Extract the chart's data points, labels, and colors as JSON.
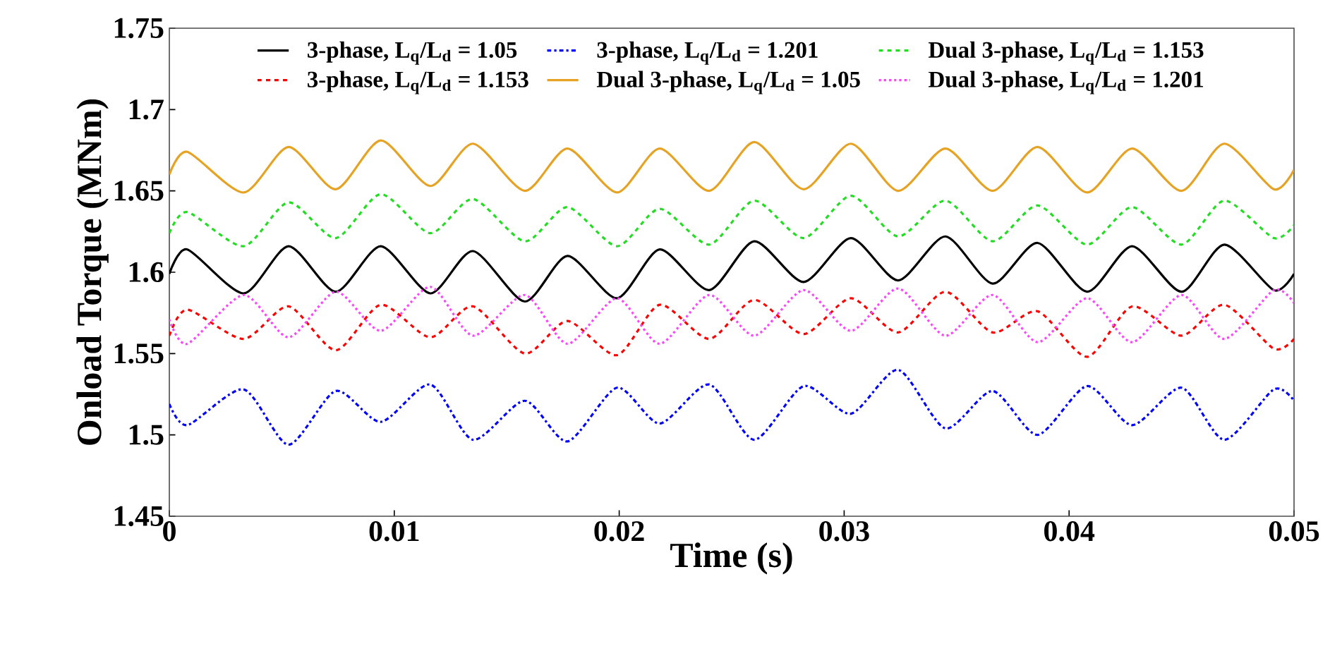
{
  "chart_data": {
    "type": "line",
    "xlabel": "Time (s)",
    "ylabel": "Onload Torque (MNm)",
    "x": [
      0,
      0.0008,
      0.0033,
      0.0053,
      0.0074,
      0.0094,
      0.0116,
      0.0135,
      0.0158,
      0.0177,
      0.0199,
      0.0218,
      0.024,
      0.026,
      0.0282,
      0.0303,
      0.0324,
      0.0345,
      0.0366,
      0.0386,
      0.0408,
      0.0428,
      0.045,
      0.0469,
      0.0491,
      0.05
    ],
    "xlim": [
      0,
      0.05
    ],
    "ylim": [
      1.45,
      1.75
    ],
    "xticks": [
      0,
      0.01,
      0.02,
      0.03,
      0.04,
      0.05
    ],
    "yticks": [
      1.45,
      1.5,
      1.55,
      1.6,
      1.65,
      1.7,
      1.75
    ],
    "grid": false,
    "legend": "top",
    "marker": "none",
    "series": [
      {
        "name": "3-phase, L$_{q}$/L$_{d}$ = 1.05",
        "color": "#000000",
        "line_style": "solid",
        "values": [
          1.599,
          1.614,
          1.587,
          1.616,
          1.588,
          1.616,
          1.587,
          1.613,
          1.582,
          1.61,
          1.584,
          1.614,
          1.589,
          1.619,
          1.594,
          1.621,
          1.595,
          1.622,
          1.593,
          1.618,
          1.588,
          1.616,
          1.588,
          1.617,
          1.589,
          1.599
        ]
      },
      {
        "name": "3-phase, L$_{q}$/L$_{d}$ = 1.201",
        "color": "#0000ff",
        "line_style": "dashdot",
        "values": [
          1.519,
          1.506,
          1.528,
          1.494,
          1.527,
          1.508,
          1.531,
          1.497,
          1.521,
          1.496,
          1.529,
          1.507,
          1.531,
          1.497,
          1.53,
          1.513,
          1.54,
          1.504,
          1.527,
          1.5,
          1.53,
          1.506,
          1.529,
          1.497,
          1.528,
          1.521
        ]
      },
      {
        "name": "Dual 3-phase, L$_{q}$/L$_{d}$ = 1.153",
        "color": "#22dd22",
        "line_style": "dashed",
        "values": [
          1.624,
          1.637,
          1.616,
          1.643,
          1.621,
          1.648,
          1.624,
          1.645,
          1.619,
          1.64,
          1.616,
          1.639,
          1.617,
          1.644,
          1.621,
          1.647,
          1.622,
          1.644,
          1.619,
          1.641,
          1.617,
          1.64,
          1.617,
          1.644,
          1.621,
          1.629
        ]
      },
      {
        "name": "3-phase, L$_{q}$/L$_{d}$ = 1.153",
        "color": "#ff0000",
        "line_style": "dashed",
        "values": [
          1.561,
          1.577,
          1.559,
          1.579,
          1.552,
          1.58,
          1.56,
          1.579,
          1.55,
          1.57,
          1.549,
          1.58,
          1.559,
          1.583,
          1.562,
          1.584,
          1.563,
          1.588,
          1.563,
          1.576,
          1.548,
          1.579,
          1.561,
          1.58,
          1.553,
          1.559
        ]
      },
      {
        "name": "Dual 3-phase, L$_{q}$/L$_{d}$ = 1.05",
        "color": "#e6a323",
        "line_style": "solid",
        "values": [
          1.66,
          1.674,
          1.649,
          1.677,
          1.651,
          1.681,
          1.653,
          1.679,
          1.65,
          1.676,
          1.649,
          1.676,
          1.65,
          1.68,
          1.651,
          1.679,
          1.65,
          1.676,
          1.65,
          1.677,
          1.649,
          1.676,
          1.65,
          1.679,
          1.651,
          1.663
        ]
      },
      {
        "name": "Dual 3-phase, L$_{q}$/L$_{d}$ = 1.201",
        "color": "#ff44ff",
        "line_style": "dotted",
        "values": [
          1.571,
          1.556,
          1.586,
          1.56,
          1.588,
          1.564,
          1.591,
          1.561,
          1.586,
          1.556,
          1.584,
          1.556,
          1.586,
          1.561,
          1.589,
          1.564,
          1.59,
          1.561,
          1.586,
          1.557,
          1.584,
          1.557,
          1.586,
          1.559,
          1.589,
          1.581
        ]
      }
    ]
  }
}
